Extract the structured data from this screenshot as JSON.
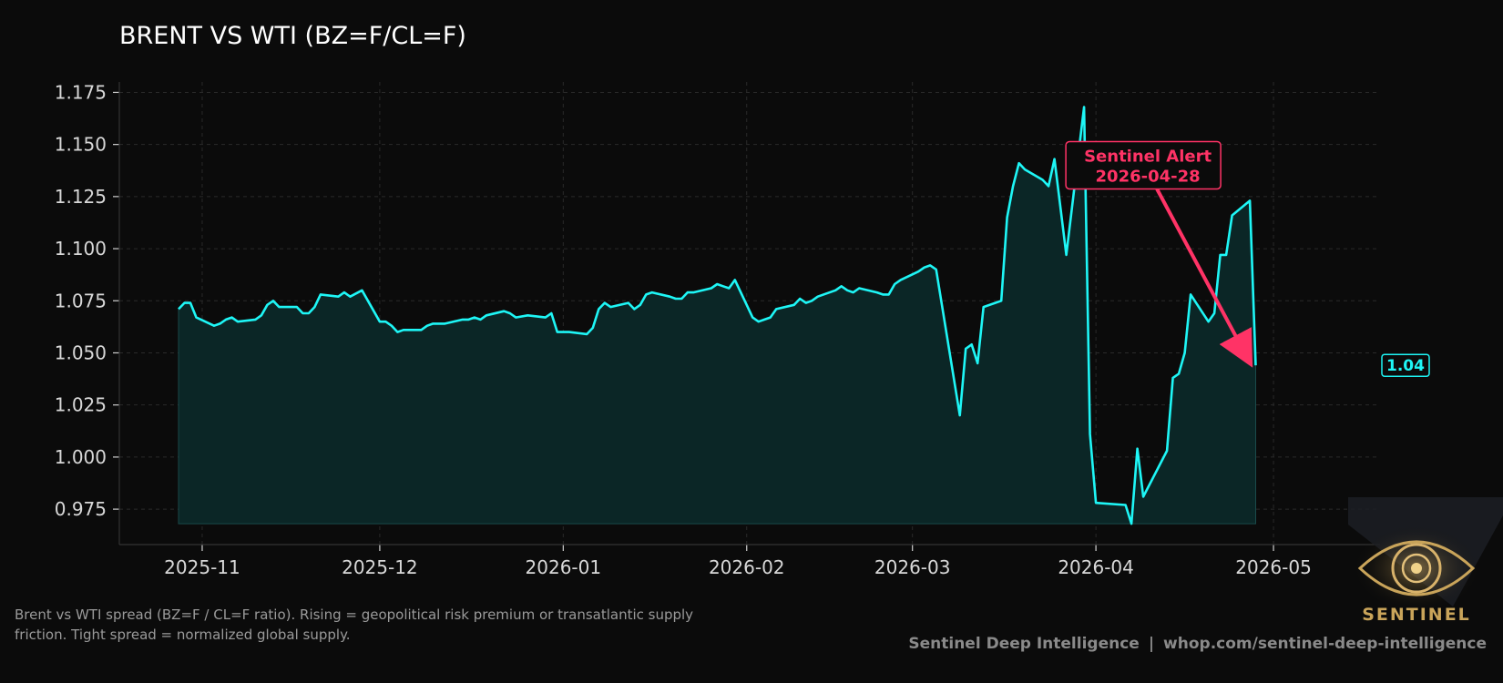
{
  "chart_data": {
    "type": "area",
    "title": "BRENT VS WTI (BZ=F/CL=F)",
    "xlabel": "",
    "ylabel": "",
    "x_ticks": [
      "2025-11",
      "2025-12",
      "2026-01",
      "2026-02",
      "2026-03",
      "2026-04",
      "2026-05"
    ],
    "y_ticks": [
      0.975,
      1.0,
      1.025,
      1.05,
      1.075,
      1.1,
      1.125,
      1.15,
      1.175
    ],
    "y_tick_labels": [
      "0.975",
      "1.000",
      "1.025",
      "1.050",
      "1.075",
      "1.100",
      "1.125",
      "1.150",
      "1.175"
    ],
    "xlim": [
      "2025-10-18",
      "2026-05-19"
    ],
    "ylim": [
      0.958,
      1.18
    ],
    "fill_base": 0.968,
    "grid": true,
    "line_color": "#1ef6f6",
    "fill_color": "#0b2626",
    "series": [
      {
        "x": [
          "2025-10-28",
          "2025-10-29",
          "2025-10-30",
          "2025-10-31",
          "2025-11-03",
          "2025-11-04",
          "2025-11-05",
          "2025-11-06",
          "2025-11-07",
          "2025-11-10",
          "2025-11-11",
          "2025-11-12",
          "2025-11-13",
          "2025-11-14",
          "2025-11-17",
          "2025-11-18",
          "2025-11-19",
          "2025-11-20",
          "2025-11-21",
          "2025-11-24",
          "2025-11-25",
          "2025-11-26",
          "2025-11-28",
          "2025-12-01",
          "2025-12-02",
          "2025-12-03",
          "2025-12-04",
          "2025-12-05",
          "2025-12-08",
          "2025-12-09",
          "2025-12-10",
          "2025-12-11",
          "2025-12-12",
          "2025-12-15",
          "2025-12-16",
          "2025-12-17",
          "2025-12-18",
          "2025-12-19",
          "2025-12-22",
          "2025-12-23",
          "2025-12-24",
          "2025-12-26",
          "2025-12-29",
          "2025-12-30",
          "2025-12-31",
          "2026-01-02",
          "2026-01-05",
          "2026-01-06",
          "2026-01-07",
          "2026-01-08",
          "2026-01-09",
          "2026-01-12",
          "2026-01-13",
          "2026-01-14",
          "2026-01-15",
          "2026-01-16",
          "2026-01-19",
          "2026-01-20",
          "2026-01-21",
          "2026-01-22",
          "2026-01-23",
          "2026-01-26",
          "2026-01-27",
          "2026-01-28",
          "2026-01-29",
          "2026-01-30",
          "2026-02-02",
          "2026-02-03",
          "2026-02-04",
          "2026-02-05",
          "2026-02-06",
          "2026-02-09",
          "2026-02-10",
          "2026-02-11",
          "2026-02-12",
          "2026-02-13",
          "2026-02-16",
          "2026-02-17",
          "2026-02-18",
          "2026-02-19",
          "2026-02-20",
          "2026-02-23",
          "2026-02-24",
          "2026-02-25",
          "2026-02-26",
          "2026-02-27",
          "2026-03-02",
          "2026-03-03",
          "2026-03-04",
          "2026-03-05",
          "2026-03-09",
          "2026-03-10",
          "2026-03-11",
          "2026-03-12",
          "2026-03-13",
          "2026-03-16",
          "2026-03-17",
          "2026-03-18",
          "2026-03-19",
          "2026-03-20",
          "2026-03-23",
          "2026-03-24",
          "2026-03-25",
          "2026-03-26",
          "2026-03-27",
          "2026-03-30",
          "2026-03-31",
          "2026-04-01",
          "2026-04-06",
          "2026-04-07",
          "2026-04-08",
          "2026-04-09",
          "2026-04-13",
          "2026-04-14",
          "2026-04-15",
          "2026-04-16",
          "2026-04-17",
          "2026-04-20",
          "2026-04-21",
          "2026-04-22",
          "2026-04-23",
          "2026-04-24",
          "2026-04-27",
          "2026-04-28"
        ],
        "y": [
          1.071,
          1.074,
          1.074,
          1.067,
          1.063,
          1.064,
          1.066,
          1.067,
          1.065,
          1.066,
          1.068,
          1.073,
          1.075,
          1.072,
          1.072,
          1.069,
          1.069,
          1.072,
          1.078,
          1.077,
          1.079,
          1.077,
          1.08,
          1.065,
          1.065,
          1.063,
          1.06,
          1.061,
          1.061,
          1.063,
          1.064,
          1.064,
          1.064,
          1.066,
          1.066,
          1.067,
          1.066,
          1.068,
          1.07,
          1.069,
          1.067,
          1.068,
          1.067,
          1.069,
          1.06,
          1.06,
          1.059,
          1.062,
          1.071,
          1.074,
          1.072,
          1.074,
          1.071,
          1.073,
          1.078,
          1.079,
          1.077,
          1.076,
          1.076,
          1.079,
          1.079,
          1.081,
          1.083,
          1.082,
          1.081,
          1.085,
          1.067,
          1.065,
          1.066,
          1.067,
          1.071,
          1.073,
          1.076,
          1.074,
          1.075,
          1.077,
          1.08,
          1.082,
          1.08,
          1.079,
          1.081,
          1.079,
          1.078,
          1.078,
          1.083,
          1.085,
          1.089,
          1.091,
          1.092,
          1.09,
          1.02,
          1.052,
          1.054,
          1.045,
          1.072,
          1.075,
          1.115,
          1.13,
          1.141,
          1.138,
          1.133,
          1.13,
          1.143,
          1.12,
          1.097,
          1.168,
          1.011,
          0.978,
          0.977,
          0.968,
          1.004,
          0.981,
          1.003,
          1.038,
          1.04,
          1.05,
          1.078,
          1.065,
          1.069,
          1.097,
          1.097,
          1.116,
          1.123,
          1.044
        ]
      }
    ],
    "annotations": [
      {
        "title": "Sentinel Alert",
        "date": "2026-04-28",
        "text_anchor_x": "2026-04-09",
        "text_anchor_y": 1.14,
        "arrow_target_x": "2026-04-28",
        "arrow_target_y": 1.044,
        "color": "#ff3366"
      }
    ],
    "last_value_badge": {
      "label": "1.04",
      "color": "#1ef6f6"
    }
  },
  "caption": {
    "line1": "Brent vs WTI spread (BZ=F / CL=F ratio). Rising = geopolitical risk premium or transatlantic supply",
    "line2": "friction. Tight spread = normalized global supply."
  },
  "footer": {
    "brand": "Sentinel Deep Intelligence",
    "separator": "|",
    "url": "whop.com/sentinel-deep-intelligence"
  },
  "logo": {
    "text": "SENTINEL",
    "icon": "eye-icon"
  }
}
